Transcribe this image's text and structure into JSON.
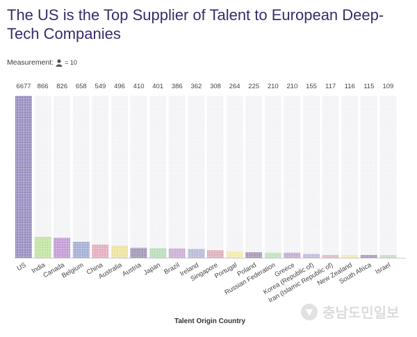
{
  "title": "The US is the Top Supplier of Talent to European Deep-Tech Companies",
  "measurement": {
    "label": "Measurement:",
    "icon": "person-icon",
    "unit_text": "= 10"
  },
  "watermark": {
    "text": "충남도민일보"
  },
  "chart_data": {
    "type": "bar",
    "style": "pictogram",
    "xlabel": "Talent Origin Country",
    "ylabel": "",
    "icon_value": 10,
    "categories": [
      "US",
      "India",
      "Canada",
      "Belgium",
      "China",
      "Australia",
      "Austria",
      "Japan",
      "Brazil",
      "Ireland",
      "Singapore",
      "Portugal",
      "Poland",
      "Russian Federation",
      "Greece",
      "Korea (Republic of)",
      "Iran (Islamic Republic of)",
      "New Zealand",
      "South Africa",
      "Israel"
    ],
    "values": [
      6677,
      866,
      826,
      658,
      549,
      496,
      410,
      401,
      386,
      362,
      308,
      264,
      225,
      210,
      210,
      155,
      117,
      116,
      115,
      109
    ],
    "colors": [
      "#6f61a9",
      "#a8d97c",
      "#a874c2",
      "#7e8ec4",
      "#d98ca5",
      "#e6d77a",
      "#7e6b99",
      "#9bcf9f",
      "#b58fc6",
      "#9a9fc7",
      "#cf8fa3",
      "#f0e28a",
      "#7d6f9c",
      "#a9d6a0",
      "#a888c0",
      "#9ea3c8",
      "#d69aab",
      "#ece08e",
      "#7d6f9c",
      "#a9d4a1"
    ],
    "grid": false,
    "legend": "none"
  }
}
